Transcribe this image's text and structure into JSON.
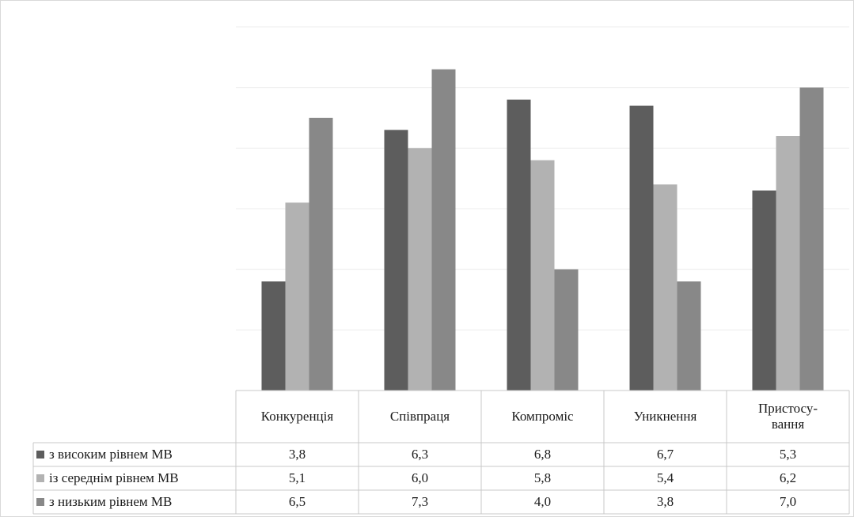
{
  "chart_data": {
    "type": "bar",
    "categories": [
      "Конкуренція",
      "Співпраця",
      "Компроміс",
      "Уникнення",
      "Пристосу-вання"
    ],
    "series": [
      {
        "name": "з високим рівнем МВ",
        "color": "#5d5d5d",
        "values": [
          "3,8",
          "6,3",
          "6,8",
          "6,7",
          "5,3"
        ]
      },
      {
        "name": "із середнім рівнем МВ",
        "color": "#b2b2b2",
        "values": [
          "5,1",
          "6,0",
          "5,8",
          "5,4",
          "6,2"
        ]
      },
      {
        "name": "з низьким рівнем МВ",
        "color": "#888888",
        "values": [
          "6,5",
          "7,3",
          "4,0",
          "3,8",
          "7,0"
        ]
      }
    ],
    "ylim": [
      2,
      8
    ],
    "grid": true,
    "legend": "data-table"
  }
}
